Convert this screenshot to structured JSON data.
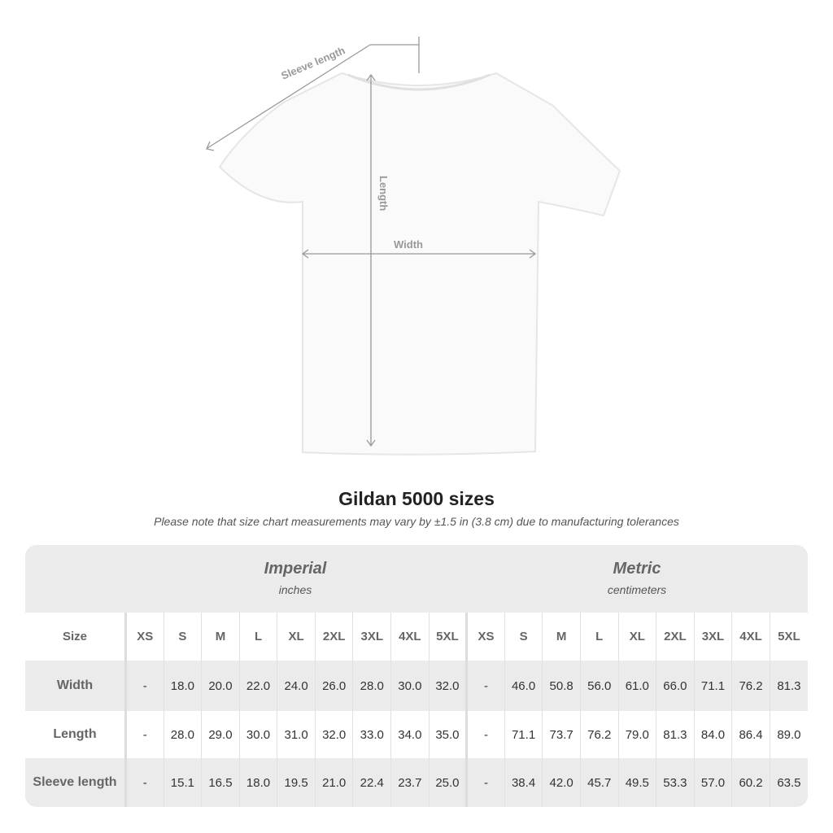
{
  "diagram": {
    "sleeve_label": "Sleeve length",
    "length_label": "Length",
    "width_label": "Width"
  },
  "title": "Gildan 5000 sizes",
  "subtitle": "Please note that size chart measurements may vary by ±1.5 in (3.8 cm) due to manufacturing tolerances",
  "imperial": {
    "title": "Imperial",
    "unit": "inches"
  },
  "metric": {
    "title": "Metric",
    "unit": "centimeters"
  },
  "size_header": "Size",
  "sizes": [
    "XS",
    "S",
    "M",
    "L",
    "XL",
    "2XL",
    "3XL",
    "4XL",
    "5XL"
  ],
  "rows": [
    {
      "label": "Width",
      "imperial": [
        "-",
        "18.0",
        "20.0",
        "22.0",
        "24.0",
        "26.0",
        "28.0",
        "30.0",
        "32.0"
      ],
      "metric": [
        "-",
        "46.0",
        "50.8",
        "56.0",
        "61.0",
        "66.0",
        "71.1",
        "76.2",
        "81.3"
      ]
    },
    {
      "label": "Length",
      "imperial": [
        "-",
        "28.0",
        "29.0",
        "30.0",
        "31.0",
        "32.0",
        "33.0",
        "34.0",
        "35.0"
      ],
      "metric": [
        "-",
        "71.1",
        "73.7",
        "76.2",
        "79.0",
        "81.3",
        "84.0",
        "86.4",
        "89.0"
      ]
    },
    {
      "label": "Sleeve length",
      "imperial": [
        "-",
        "15.1",
        "16.5",
        "18.0",
        "19.5",
        "21.0",
        "22.4",
        "23.7",
        "25.0"
      ],
      "metric": [
        "-",
        "38.4",
        "42.0",
        "45.7",
        "49.5",
        "53.3",
        "57.0",
        "60.2",
        "63.5"
      ]
    }
  ]
}
